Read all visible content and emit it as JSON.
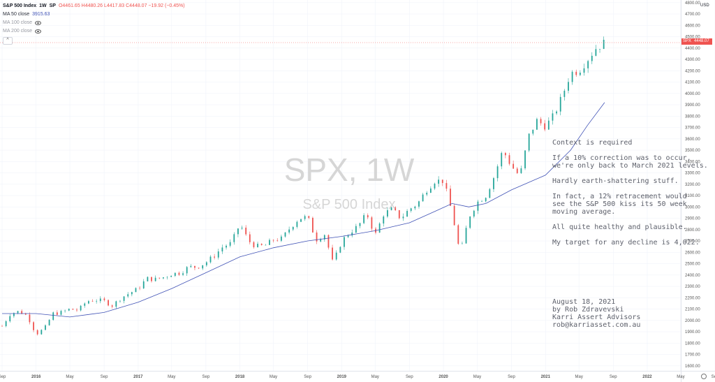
{
  "header": {
    "symbol": "S&P 500 Index",
    "interval": "1W",
    "exchange": "SP",
    "ohlc": "O4461.65 H4480.26 L4417.83 C4448.07 −19.92 (−0.45%)",
    "ma50_label": "MA 50 close",
    "ma50_value": "3915.63",
    "ma100_label": "MA 100 close",
    "ma200_label": "MA 200 close",
    "collapse_icon": "chevron-up-icon",
    "eye_icon": "eye-icon"
  },
  "watermark": {
    "symbol": "SPX, 1W",
    "description": "S&P 500 Index"
  },
  "annotation": {
    "lines": [
      "Context is required",
      "",
      "If a 10% correction was to occur,",
      "we're only back to March 2021 levels.",
      "",
      "Hardly earth-shattering stuff.",
      "",
      "In fact, a 12% retracement would",
      "see the S&P 500 kiss its 50 week",
      "moving average.",
      "",
      "All quite healthy and plausible.",
      "",
      "My target for any decline is 4,022."
    ],
    "signature": [
      "August 18, 2021",
      "by Rob Zdravevski",
      "Karri Assert Advisors",
      "rob@karriasset.com.au"
    ]
  },
  "price_scale": {
    "currency": "USD",
    "last_label": "SPX",
    "last_value": "4448.07",
    "settings_icon": "gear-icon"
  },
  "colors": {
    "up": "#26a69a",
    "down": "#ef5350",
    "ma": "#3f51b5",
    "grid": "#f0f3fa",
    "axis_text": "#555555"
  },
  "chart_data": {
    "type": "candlestick",
    "title": "S&P 500 Index",
    "interval": "1W",
    "ylim": [
      1600,
      4800
    ],
    "y_ticks": [
      1600,
      1700,
      1800,
      1900,
      2000,
      2100,
      2200,
      2300,
      2400,
      2500,
      2600,
      2700,
      2800,
      2900,
      3000,
      3100,
      3200,
      3300,
      3400,
      3500,
      3600,
      3700,
      3800,
      3900,
      4000,
      4100,
      4200,
      4300,
      4400,
      4500,
      4600,
      4700,
      4800
    ],
    "x_ticks": [
      "Sep",
      "2016",
      "May",
      "Sep",
      "2017",
      "May",
      "Sep",
      "2018",
      "May",
      "Sep",
      "2019",
      "May",
      "Sep",
      "2020",
      "May",
      "Sep",
      "2021",
      "May",
      "Sep",
      "2022",
      "May",
      "Sep"
    ],
    "x_tick_dates": [
      "2015-09",
      "2016-01",
      "2016-05",
      "2016-09",
      "2017-01",
      "2017-05",
      "2017-09",
      "2018-01",
      "2018-05",
      "2018-09",
      "2019-01",
      "2019-05",
      "2019-09",
      "2020-01",
      "2020-05",
      "2020-09",
      "2021-01",
      "2021-05",
      "2021-09",
      "2022-01",
      "2022-05",
      "2022-09"
    ],
    "series": [
      {
        "name": "SPX",
        "kind": "price",
        "x": [
          "2015-09",
          "2015-10",
          "2015-11",
          "2015-12",
          "2016-01",
          "2016-02",
          "2016-03",
          "2016-04",
          "2016-05",
          "2016-06",
          "2016-07",
          "2016-08",
          "2016-09",
          "2016-10",
          "2016-11",
          "2016-12",
          "2017-01",
          "2017-02",
          "2017-03",
          "2017-04",
          "2017-05",
          "2017-06",
          "2017-07",
          "2017-08",
          "2017-09",
          "2017-10",
          "2017-11",
          "2017-12",
          "2018-01",
          "2018-02",
          "2018-03",
          "2018-04",
          "2018-05",
          "2018-06",
          "2018-07",
          "2018-08",
          "2018-09",
          "2018-10",
          "2018-11",
          "2018-12",
          "2019-01",
          "2019-02",
          "2019-03",
          "2019-04",
          "2019-05",
          "2019-06",
          "2019-07",
          "2019-08",
          "2019-09",
          "2019-10",
          "2019-11",
          "2019-12",
          "2020-01",
          "2020-02",
          "2020-03",
          "2020-04",
          "2020-05",
          "2020-06",
          "2020-07",
          "2020-08",
          "2020-09",
          "2020-10",
          "2020-11",
          "2020-12",
          "2021-01",
          "2021-02",
          "2021-03",
          "2021-04",
          "2021-05",
          "2021-06",
          "2021-07",
          "2021-08"
        ],
        "values": [
          1950,
          2060,
          2080,
          2040,
          1880,
          1930,
          2060,
          2070,
          2100,
          2090,
          2170,
          2180,
          2170,
          2130,
          2200,
          2240,
          2280,
          2370,
          2360,
          2380,
          2410,
          2420,
          2470,
          2470,
          2510,
          2570,
          2650,
          2680,
          2850,
          2700,
          2650,
          2660,
          2710,
          2720,
          2820,
          2900,
          2910,
          2710,
          2760,
          2500,
          2700,
          2780,
          2830,
          2940,
          2750,
          2940,
          2980,
          2900,
          2980,
          3030,
          3150,
          3230,
          3230,
          2950,
          2580,
          2910,
          3040,
          3100,
          3270,
          3500,
          3360,
          3270,
          3620,
          3760,
          3710,
          3810,
          3970,
          4180,
          4200,
          4300,
          4400,
          4448
        ]
      },
      {
        "name": "MA 50 close",
        "kind": "ma",
        "x": [
          "2015-09",
          "2016-01",
          "2016-05",
          "2016-09",
          "2017-01",
          "2017-05",
          "2017-09",
          "2018-01",
          "2018-05",
          "2018-09",
          "2019-01",
          "2019-05",
          "2019-09",
          "2019-12",
          "2020-02",
          "2020-04",
          "2020-06",
          "2020-09",
          "2021-01",
          "2021-04",
          "2021-06",
          "2021-08"
        ],
        "values": [
          2060,
          2060,
          2030,
          2070,
          2160,
          2280,
          2420,
          2560,
          2640,
          2700,
          2740,
          2790,
          2860,
          2960,
          3030,
          3000,
          3030,
          3150,
          3280,
          3500,
          3720,
          3920
        ]
      }
    ]
  }
}
